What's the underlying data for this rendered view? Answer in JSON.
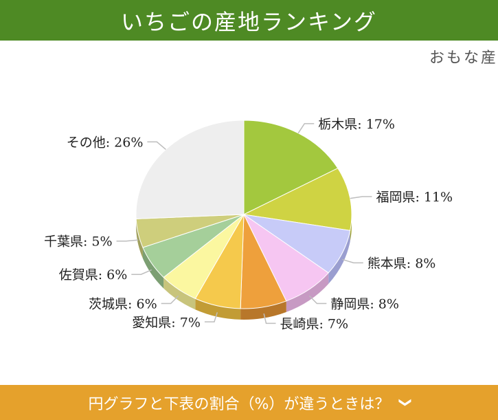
{
  "header": {
    "title": "いちごの産地ランキング"
  },
  "subtitle": "おもな産",
  "chart_data": {
    "type": "pie",
    "title": "",
    "slices": [
      {
        "label": "栃木県",
        "value": 17,
        "color": "#a3c83e",
        "side": "#7d9a2f"
      },
      {
        "label": "福岡県",
        "value": 11,
        "color": "#cfd343",
        "side": "#a4a833"
      },
      {
        "label": "熊本県",
        "value": 8,
        "color": "#c7cbf8",
        "side": "#9a9ed0"
      },
      {
        "label": "静岡県",
        "value": 8,
        "color": "#f6c6f2",
        "side": "#c79ac3"
      },
      {
        "label": "長崎県",
        "value": 7,
        "color": "#eea03c",
        "side": "#b8772a"
      },
      {
        "label": "愛知県",
        "value": 7,
        "color": "#f5c94c",
        "side": "#c29c35"
      },
      {
        "label": "茨城県",
        "value": 6,
        "color": "#fbf7a0",
        "side": "#c8c47c"
      },
      {
        "label": "佐賀県",
        "value": 6,
        "color": "#a5cf9a",
        "side": "#7c9f73"
      },
      {
        "label": "千葉県",
        "value": 5,
        "color": "#cece7c",
        "side": "#a0a05e"
      },
      {
        "label": "その他",
        "value": 26,
        "color": "#eeeeee",
        "side": "#bdbdbd"
      }
    ],
    "label_format": "{label}: {value}%"
  },
  "footer": {
    "label": "円グラフと下表の割合（%）が違うときは？",
    "icon": "chevron-down-icon"
  }
}
